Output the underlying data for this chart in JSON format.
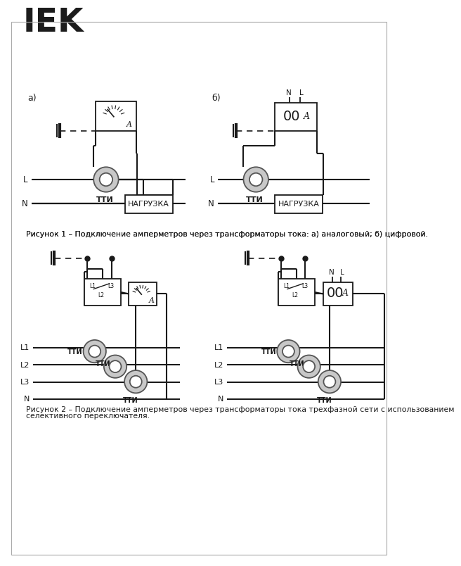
{
  "bg_color": "#ffffff",
  "line_color": "#1a1a1a",
  "text_color": "#1a1a1a",
  "tti_fill": "#c8c8c8",
  "tti_inner": "#ffffff",
  "tti_ec": "#555555",
  "fig_caption1": "Рисунок 1 – Подключение амперметров через трансформаторы тока: а) аналоговый; б) цифровой.",
  "fig_caption2_line1": "Рисунок 2 – Подключение амперметров через трансформаторы тока трехфазной сети с использованием",
  "fig_caption2_line2": "селективного переключателя."
}
